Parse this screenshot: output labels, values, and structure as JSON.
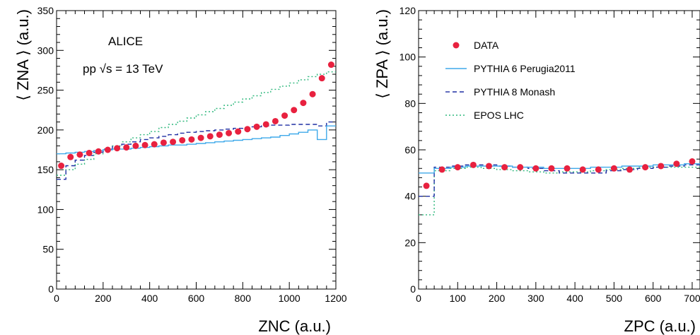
{
  "chart_data": [
    {
      "type": "line",
      "xlabel": "ZNC (a.u.)",
      "ylabel": "⟨ ZNA ⟩ (a.u.)",
      "xlim": [
        0,
        1200
      ],
      "ylim": [
        0,
        350
      ],
      "xticks": [
        0,
        200,
        400,
        600,
        800,
        1000,
        1200
      ],
      "yticks": [
        0,
        50,
        100,
        150,
        200,
        250,
        300,
        350
      ],
      "annotations": [
        "ALICE",
        "pp √s = 13 TeV"
      ],
      "bin_edges": [
        0,
        40,
        80,
        120,
        160,
        200,
        240,
        280,
        320,
        360,
        400,
        440,
        480,
        520,
        560,
        600,
        640,
        680,
        720,
        760,
        800,
        840,
        880,
        920,
        960,
        1000,
        1040,
        1080,
        1120,
        1160,
        1200
      ],
      "series": [
        {
          "name": "DATA",
          "x": [
            20,
            60,
            100,
            140,
            180,
            220,
            260,
            300,
            340,
            380,
            420,
            460,
            500,
            540,
            580,
            620,
            660,
            700,
            740,
            780,
            820,
            860,
            900,
            940,
            980,
            1020,
            1060,
            1100,
            1140,
            1180
          ],
          "values": [
            155,
            166,
            169,
            171,
            173,
            175,
            177,
            178,
            180,
            181,
            182,
            184,
            185,
            187,
            188,
            190,
            192,
            194,
            196,
            198,
            201,
            204,
            207,
            211,
            218,
            225,
            234,
            245,
            265,
            282
          ]
        },
        {
          "name": "PYTHIA 6 Perugia2011",
          "values": [
            170,
            171,
            172,
            173,
            174,
            175,
            176,
            176,
            177,
            178,
            179,
            180,
            181,
            181,
            182,
            183,
            184,
            185,
            186,
            187,
            188,
            189,
            190,
            191,
            193,
            195,
            197,
            200,
            188,
            205
          ]
        },
        {
          "name": "PYTHIA 8 Monash",
          "values": [
            138,
            155,
            162,
            168,
            172,
            176,
            179,
            182,
            185,
            188,
            190,
            192,
            194,
            196,
            197,
            198,
            199,
            200,
            201,
            202,
            203,
            204,
            205,
            206,
            206,
            207,
            207,
            207,
            205,
            210
          ]
        },
        {
          "name": "EPOS LHC",
          "values": [
            143,
            150,
            157,
            163,
            170,
            175,
            180,
            185,
            190,
            194,
            198,
            203,
            207,
            211,
            215,
            219,
            223,
            227,
            231,
            235,
            239,
            243,
            247,
            251,
            255,
            259,
            263,
            267,
            270,
            273
          ]
        }
      ]
    },
    {
      "type": "line",
      "xlabel": "ZPC (a.u.)",
      "ylabel": "⟨ ZPA ⟩ (a.u.)",
      "xlim": [
        0,
        720
      ],
      "ylim": [
        0,
        120
      ],
      "xticks": [
        0,
        100,
        200,
        300,
        400,
        500,
        600,
        700
      ],
      "yticks": [
        0,
        20,
        40,
        60,
        80,
        100,
        120
      ],
      "bin_edges": [
        0,
        40,
        80,
        120,
        160,
        200,
        240,
        280,
        320,
        360,
        400,
        440,
        480,
        520,
        560,
        600,
        640,
        680,
        720
      ],
      "series": [
        {
          "name": "DATA",
          "x": [
            20,
            60,
            100,
            140,
            180,
            220,
            260,
            300,
            340,
            380,
            420,
            460,
            500,
            540,
            580,
            620,
            660,
            700
          ],
          "values": [
            44.5,
            51.5,
            52.5,
            53.5,
            53,
            52.5,
            52.5,
            52,
            52,
            52,
            51.5,
            51.5,
            52,
            51.5,
            52.5,
            53,
            54,
            55
          ]
        },
        {
          "name": "PYTHIA 6 Perugia2011",
          "values": [
            50,
            52,
            52.5,
            53,
            53,
            53,
            52.5,
            52.5,
            52,
            52,
            52,
            52.5,
            52.5,
            53,
            53,
            53.5,
            53.5,
            54
          ]
        },
        {
          "name": "PYTHIA 8 Monash",
          "values": [
            40,
            52.5,
            53,
            53.5,
            53.5,
            53,
            52.5,
            52,
            51,
            50,
            50,
            50,
            51,
            51.5,
            52,
            52.5,
            53,
            53.5
          ]
        },
        {
          "name": "EPOS LHC",
          "values": [
            32,
            51,
            52,
            52.5,
            52,
            51.5,
            51,
            50.5,
            50,
            50.5,
            50.5,
            51,
            51.5,
            52,
            52.5,
            52.5,
            52.5,
            52.5
          ]
        }
      ]
    }
  ],
  "colors": {
    "data": "#e8213f",
    "pythia6": "#3fa9ea",
    "pythia8": "#1f2fa3",
    "epos": "#2fb87d"
  }
}
